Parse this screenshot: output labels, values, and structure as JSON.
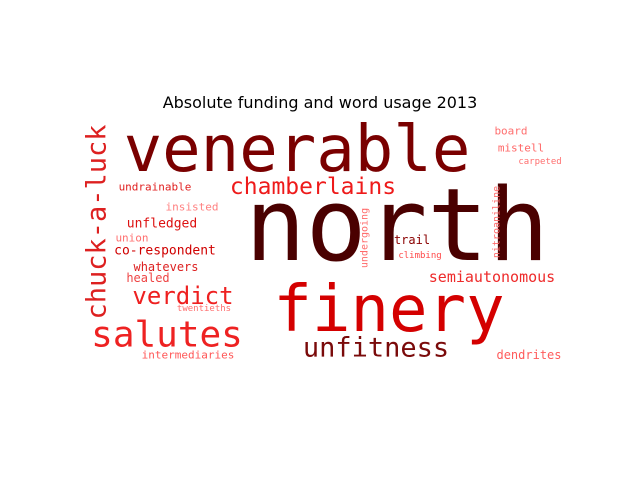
{
  "chart_data": {
    "type": "wordcloud",
    "title": "Absolute funding and word usage 2013",
    "words": [
      {
        "text": "north",
        "weight": 100,
        "color": "#4a0000"
      },
      {
        "text": "venerable",
        "weight": 78,
        "color": "#7a0000"
      },
      {
        "text": "finery",
        "weight": 76,
        "color": "#d40000"
      },
      {
        "text": "salutes",
        "weight": 43,
        "color": "#ee2222"
      },
      {
        "text": "chuck-a-luck",
        "weight": 33,
        "color": "#dd2020"
      },
      {
        "text": "unfitness",
        "weight": 32,
        "color": "#7a0a0a"
      },
      {
        "text": "verdict",
        "weight": 28,
        "color": "#ee2020"
      },
      {
        "text": "chamberlains",
        "weight": 27,
        "color": "#ee1a1a"
      },
      {
        "text": "semiautonomous",
        "weight": 18,
        "color": "#ee2a2a"
      },
      {
        "text": "co-respondent",
        "weight": 16,
        "color": "#d00000"
      },
      {
        "text": "unfledged",
        "weight": 15,
        "color": "#dd1111"
      },
      {
        "text": "whatevers",
        "weight": 14,
        "color": "#dd2020"
      },
      {
        "text": "healed",
        "weight": 14,
        "color": "#ee4444"
      },
      {
        "text": "undrainable",
        "weight": 13,
        "color": "#e02020"
      },
      {
        "text": "trail",
        "weight": 13,
        "color": "#8a0000"
      },
      {
        "text": "dendrites",
        "weight": 13,
        "color": "#ff5a5a"
      },
      {
        "text": "intermediaries",
        "weight": 12,
        "color": "#ff5555"
      },
      {
        "text": "mistell",
        "weight": 12,
        "color": "#ff6666"
      },
      {
        "text": "board",
        "weight": 12,
        "color": "#ff6f6f"
      },
      {
        "text": "insisted",
        "weight": 12,
        "color": "#ff8080"
      },
      {
        "text": "union",
        "weight": 12,
        "color": "#ff7070"
      },
      {
        "text": "undergoing",
        "weight": 11,
        "color": "#ff6a6a"
      },
      {
        "text": "nitroaniline",
        "weight": 11,
        "color": "#ff6a6a"
      },
      {
        "text": "climbing",
        "weight": 10,
        "color": "#ff4848"
      },
      {
        "text": "carpeted",
        "weight": 10,
        "color": "#ff6f6f"
      },
      {
        "text": "twentieths",
        "weight": 10,
        "color": "#ff6f6f"
      }
    ]
  }
}
